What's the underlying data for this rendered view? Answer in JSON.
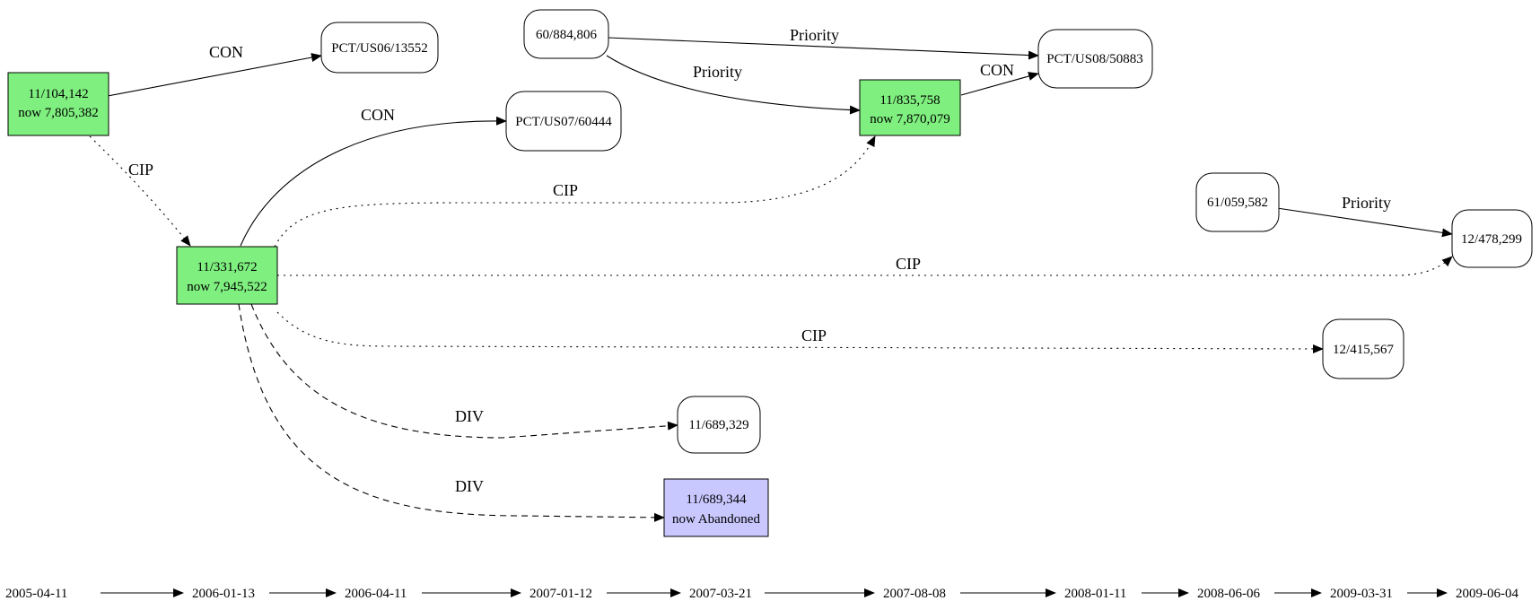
{
  "colors": {
    "granted": "#7ff07f",
    "abandoned": "#c8c8ff",
    "pending": "#ffffff",
    "line": "#000000"
  },
  "nodes": {
    "n11104142": {
      "line1": "11/104,142",
      "line2": "now 7,805,382",
      "status": "granted"
    },
    "pct0613552": {
      "line1": "PCT/US06/13552",
      "status": "pending"
    },
    "n60884806": {
      "line1": "60/884,806",
      "status": "pending"
    },
    "pct0850883": {
      "line1": "PCT/US08/50883",
      "status": "pending"
    },
    "pct0760444": {
      "line1": "PCT/US07/60444",
      "status": "pending"
    },
    "n11835758": {
      "line1": "11/835,758",
      "line2": "now 7,870,079",
      "status": "granted"
    },
    "n61059582": {
      "line1": "61/059,582",
      "status": "pending"
    },
    "n12478299": {
      "line1": "12/478,299",
      "status": "pending"
    },
    "n11331672": {
      "line1": "11/331,672",
      "line2": "now 7,945,522",
      "status": "granted"
    },
    "n12415567": {
      "line1": "12/415,567",
      "status": "pending"
    },
    "n11689329": {
      "line1": "11/689,329",
      "status": "pending"
    },
    "n11689344": {
      "line1": "11/689,344",
      "line2": "now Abandoned",
      "status": "abandoned"
    }
  },
  "edges": [
    {
      "from": "11/104,142",
      "to": "PCT/US06/13552",
      "label": "CON",
      "style": "solid"
    },
    {
      "from": "11/104,142",
      "to": "11/331,672",
      "label": "CIP",
      "style": "dotted"
    },
    {
      "from": "60/884,806",
      "to": "PCT/US08/50883",
      "label": "Priority",
      "style": "solid"
    },
    {
      "from": "60/884,806",
      "to": "11/835,758",
      "label": "Priority",
      "style": "solid"
    },
    {
      "from": "11/835,758",
      "to": "PCT/US08/50883",
      "label": "CON",
      "style": "solid"
    },
    {
      "from": "11/331,672",
      "to": "PCT/US07/60444",
      "label": "CON",
      "style": "solid"
    },
    {
      "from": "11/331,672",
      "to": "11/835,758",
      "label": "CIP",
      "style": "dotted"
    },
    {
      "from": "61/059,582",
      "to": "12/478,299",
      "label": "Priority",
      "style": "solid"
    },
    {
      "from": "11/331,672",
      "to": "12/478,299",
      "label": "CIP",
      "style": "dotted"
    },
    {
      "from": "11/331,672",
      "to": "12/415,567",
      "label": "CIP",
      "style": "dotted"
    },
    {
      "from": "11/331,672",
      "to": "11/689,329",
      "label": "DIV",
      "style": "dashed"
    },
    {
      "from": "11/331,672",
      "to": "11/689,344",
      "label": "DIV",
      "style": "dashed"
    }
  ],
  "timeline": [
    "2005-04-11",
    "2006-01-13",
    "2006-04-11",
    "2007-01-12",
    "2007-03-21",
    "2007-08-08",
    "2008-01-11",
    "2008-06-06",
    "2009-03-31",
    "2009-06-04"
  ]
}
